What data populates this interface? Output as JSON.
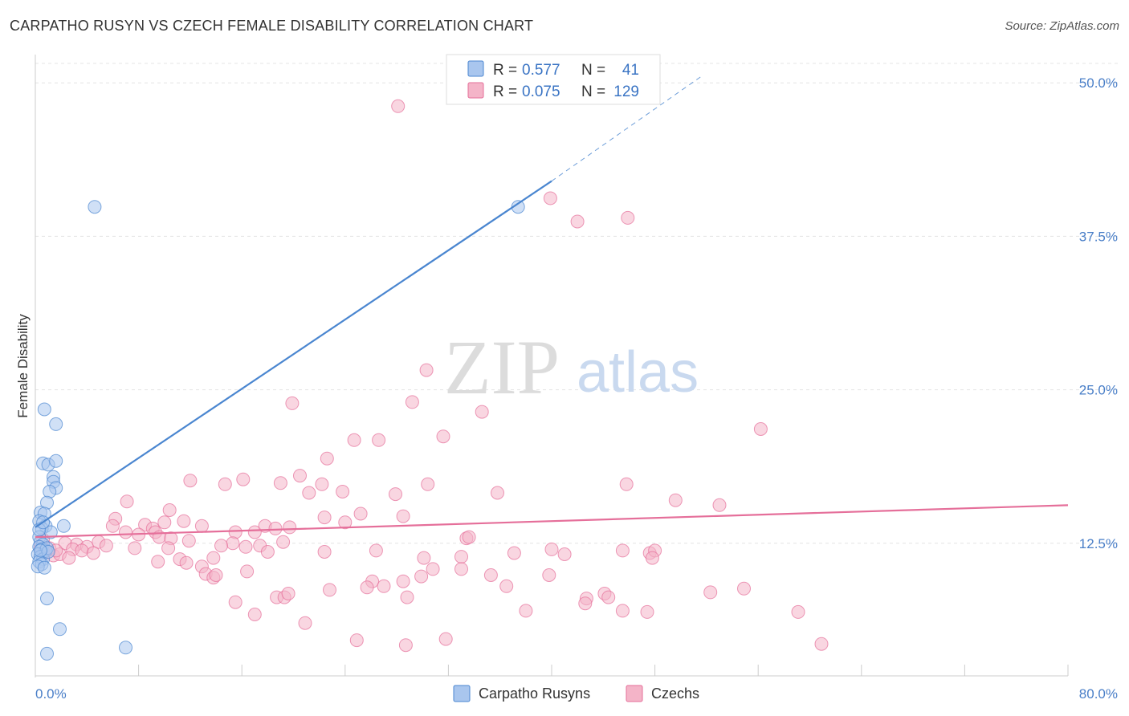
{
  "header": {
    "title": "CARPATHO RUSYN VS CZECH FEMALE DISABILITY CORRELATION CHART",
    "source": "Source: ZipAtlas.com"
  },
  "watermark": {
    "zip": "ZIP",
    "atlas": "atlas"
  },
  "legend": {
    "rows": [
      {
        "r_label": "R =",
        "r_value": "0.577",
        "n_label": "N =",
        "n_value": "41",
        "color": "#a9c6ee"
      },
      {
        "r_label": "R =",
        "r_value": "0.075",
        "n_label": "N =",
        "n_value": "129",
        "color": "#f4b4c8"
      }
    ]
  },
  "bottom_legend": {
    "items": [
      {
        "label": "Carpatho Rusyns",
        "color": "#a9c6ee"
      },
      {
        "label": "Czechs",
        "color": "#f4b4c8"
      }
    ]
  },
  "chart_data": {
    "type": "scatter",
    "title": "CARPATHO RUSYN VS CZECH FEMALE DISABILITY CORRELATION CHART",
    "xlabel": "",
    "ylabel": "Female Disability",
    "xlim": [
      0,
      80
    ],
    "ylim": [
      1.5,
      52
    ],
    "x_tick_labels": [
      "0.0%",
      "80.0%"
    ],
    "y_ticks": [
      12.5,
      25,
      37.5,
      50
    ],
    "y_tick_labels": [
      "12.5%",
      "25.0%",
      "37.5%",
      "50.0%"
    ],
    "grid": "horizontal dashed",
    "legend_position": "top-center",
    "series": [
      {
        "name": "Carpatho Rusyns",
        "color": "#4a86d0",
        "fill": "#a9c6ee",
        "trend": {
          "x": [
            0,
            40
          ],
          "y": [
            13.8,
            42
          ],
          "dashed_to": [
            51.7,
            50.6
          ]
        },
        "points": [
          [
            4.6,
            39.9
          ],
          [
            37.4,
            39.9
          ],
          [
            0.7,
            23.4
          ],
          [
            1.6,
            22.2
          ],
          [
            0.6,
            19.0
          ],
          [
            1.0,
            18.9
          ],
          [
            1.6,
            19.2
          ],
          [
            1.4,
            17.9
          ],
          [
            1.4,
            17.5
          ],
          [
            1.6,
            17.0
          ],
          [
            1.1,
            16.7
          ],
          [
            0.9,
            15.8
          ],
          [
            0.4,
            15.0
          ],
          [
            0.7,
            14.9
          ],
          [
            0.3,
            14.3
          ],
          [
            0.8,
            13.9
          ],
          [
            2.2,
            13.9
          ],
          [
            0.5,
            13.7
          ],
          [
            1.2,
            13.4
          ],
          [
            0.3,
            13.0
          ],
          [
            0.4,
            12.6
          ],
          [
            0.6,
            12.4
          ],
          [
            0.3,
            12.2
          ],
          [
            0.5,
            12.0
          ],
          [
            0.8,
            11.9
          ],
          [
            0.2,
            11.6
          ],
          [
            0.4,
            11.4
          ],
          [
            0.6,
            11.2
          ],
          [
            0.3,
            11.0
          ],
          [
            0.5,
            10.8
          ],
          [
            0.2,
            10.6
          ],
          [
            0.7,
            10.5
          ],
          [
            0.3,
            13.6
          ],
          [
            0.9,
            12.1
          ],
          [
            1.0,
            11.8
          ],
          [
            0.9,
            8.0
          ],
          [
            1.9,
            5.5
          ],
          [
            0.9,
            3.5
          ],
          [
            7.0,
            4.0
          ],
          [
            0.6,
            14.2
          ],
          [
            0.4,
            11.9
          ]
        ]
      },
      {
        "name": "Czechs",
        "color": "#e56f9a",
        "fill": "#f4b4c8",
        "trend": {
          "x": [
            0,
            80
          ],
          "y": [
            13.0,
            15.6
          ]
        },
        "points": [
          [
            28.1,
            48.1
          ],
          [
            39.9,
            40.6
          ],
          [
            42.0,
            38.7
          ],
          [
            45.9,
            39.0
          ],
          [
            30.3,
            26.6
          ],
          [
            29.2,
            24.0
          ],
          [
            19.9,
            23.9
          ],
          [
            34.6,
            23.2
          ],
          [
            56.2,
            21.8
          ],
          [
            24.7,
            20.9
          ],
          [
            26.6,
            20.9
          ],
          [
            31.6,
            21.2
          ],
          [
            22.6,
            19.4
          ],
          [
            20.5,
            18.0
          ],
          [
            16.1,
            17.7
          ],
          [
            12.0,
            17.6
          ],
          [
            14.7,
            17.3
          ],
          [
            19.0,
            17.4
          ],
          [
            22.2,
            17.3
          ],
          [
            23.8,
            16.7
          ],
          [
            30.4,
            17.3
          ],
          [
            21.2,
            16.6
          ],
          [
            27.9,
            16.5
          ],
          [
            35.8,
            16.6
          ],
          [
            45.8,
            17.3
          ],
          [
            49.6,
            16.0
          ],
          [
            53.0,
            15.6
          ],
          [
            7.1,
            15.9
          ],
          [
            10.4,
            15.2
          ],
          [
            25.2,
            14.9
          ],
          [
            28.5,
            14.7
          ],
          [
            22.4,
            14.6
          ],
          [
            6.2,
            14.5
          ],
          [
            8.5,
            14.0
          ],
          [
            9.1,
            13.7
          ],
          [
            10.0,
            14.2
          ],
          [
            11.5,
            14.3
          ],
          [
            12.9,
            13.9
          ],
          [
            6.0,
            13.9
          ],
          [
            7.0,
            13.4
          ],
          [
            8.0,
            13.2
          ],
          [
            9.3,
            13.4
          ],
          [
            15.5,
            13.4
          ],
          [
            17.0,
            13.4
          ],
          [
            17.8,
            13.9
          ],
          [
            18.6,
            13.7
          ],
          [
            19.7,
            13.8
          ],
          [
            24.0,
            14.2
          ],
          [
            9.6,
            13.0
          ],
          [
            10.5,
            12.9
          ],
          [
            11.9,
            12.7
          ],
          [
            15.3,
            12.5
          ],
          [
            16.3,
            12.2
          ],
          [
            17.4,
            12.3
          ],
          [
            19.2,
            12.6
          ],
          [
            3.2,
            12.4
          ],
          [
            4.0,
            12.2
          ],
          [
            4.9,
            12.6
          ],
          [
            5.5,
            12.3
          ],
          [
            2.3,
            12.5
          ],
          [
            2.9,
            12.0
          ],
          [
            3.6,
            11.9
          ],
          [
            4.5,
            11.7
          ],
          [
            0.8,
            11.8
          ],
          [
            1.4,
            11.5
          ],
          [
            1.9,
            11.6
          ],
          [
            2.6,
            11.3
          ],
          [
            0.4,
            12.2
          ],
          [
            0.6,
            12.8
          ],
          [
            1.1,
            12.1
          ],
          [
            1.6,
            11.9
          ],
          [
            7.7,
            12.1
          ],
          [
            10.3,
            12.1
          ],
          [
            11.2,
            11.2
          ],
          [
            13.8,
            11.3
          ],
          [
            14.4,
            12.3
          ],
          [
            18.0,
            11.8
          ],
          [
            22.4,
            11.8
          ],
          [
            26.4,
            11.9
          ],
          [
            30.1,
            11.3
          ],
          [
            33.0,
            11.4
          ],
          [
            33.4,
            12.9
          ],
          [
            33.6,
            13.0
          ],
          [
            37.1,
            11.7
          ],
          [
            40.0,
            12.0
          ],
          [
            41.0,
            11.6
          ],
          [
            45.5,
            11.9
          ],
          [
            47.6,
            11.7
          ],
          [
            48.0,
            11.9
          ],
          [
            47.8,
            11.3
          ],
          [
            9.5,
            11.0
          ],
          [
            11.7,
            10.9
          ],
          [
            12.9,
            10.6
          ],
          [
            13.2,
            10.0
          ],
          [
            13.8,
            9.7
          ],
          [
            16.4,
            10.2
          ],
          [
            26.1,
            9.4
          ],
          [
            27.0,
            9.0
          ],
          [
            28.5,
            9.4
          ],
          [
            29.9,
            9.8
          ],
          [
            30.8,
            10.4
          ],
          [
            33.0,
            10.4
          ],
          [
            35.3,
            9.9
          ],
          [
            36.5,
            9.0
          ],
          [
            39.8,
            9.9
          ],
          [
            42.7,
            8.0
          ],
          [
            44.1,
            8.4
          ],
          [
            44.4,
            8.1
          ],
          [
            52.3,
            8.5
          ],
          [
            54.9,
            8.8
          ],
          [
            18.7,
            8.1
          ],
          [
            19.3,
            8.1
          ],
          [
            22.8,
            8.7
          ],
          [
            25.7,
            8.9
          ],
          [
            28.8,
            8.1
          ],
          [
            15.5,
            7.7
          ],
          [
            17.0,
            6.7
          ],
          [
            20.9,
            6.0
          ],
          [
            38.0,
            7.0
          ],
          [
            42.6,
            7.6
          ],
          [
            45.5,
            7.0
          ],
          [
            47.4,
            6.9
          ],
          [
            59.1,
            6.9
          ],
          [
            24.9,
            4.6
          ],
          [
            28.7,
            4.2
          ],
          [
            31.8,
            4.7
          ],
          [
            60.9,
            4.3
          ],
          [
            19.6,
            8.4
          ],
          [
            14.0,
            9.9
          ]
        ]
      }
    ]
  }
}
